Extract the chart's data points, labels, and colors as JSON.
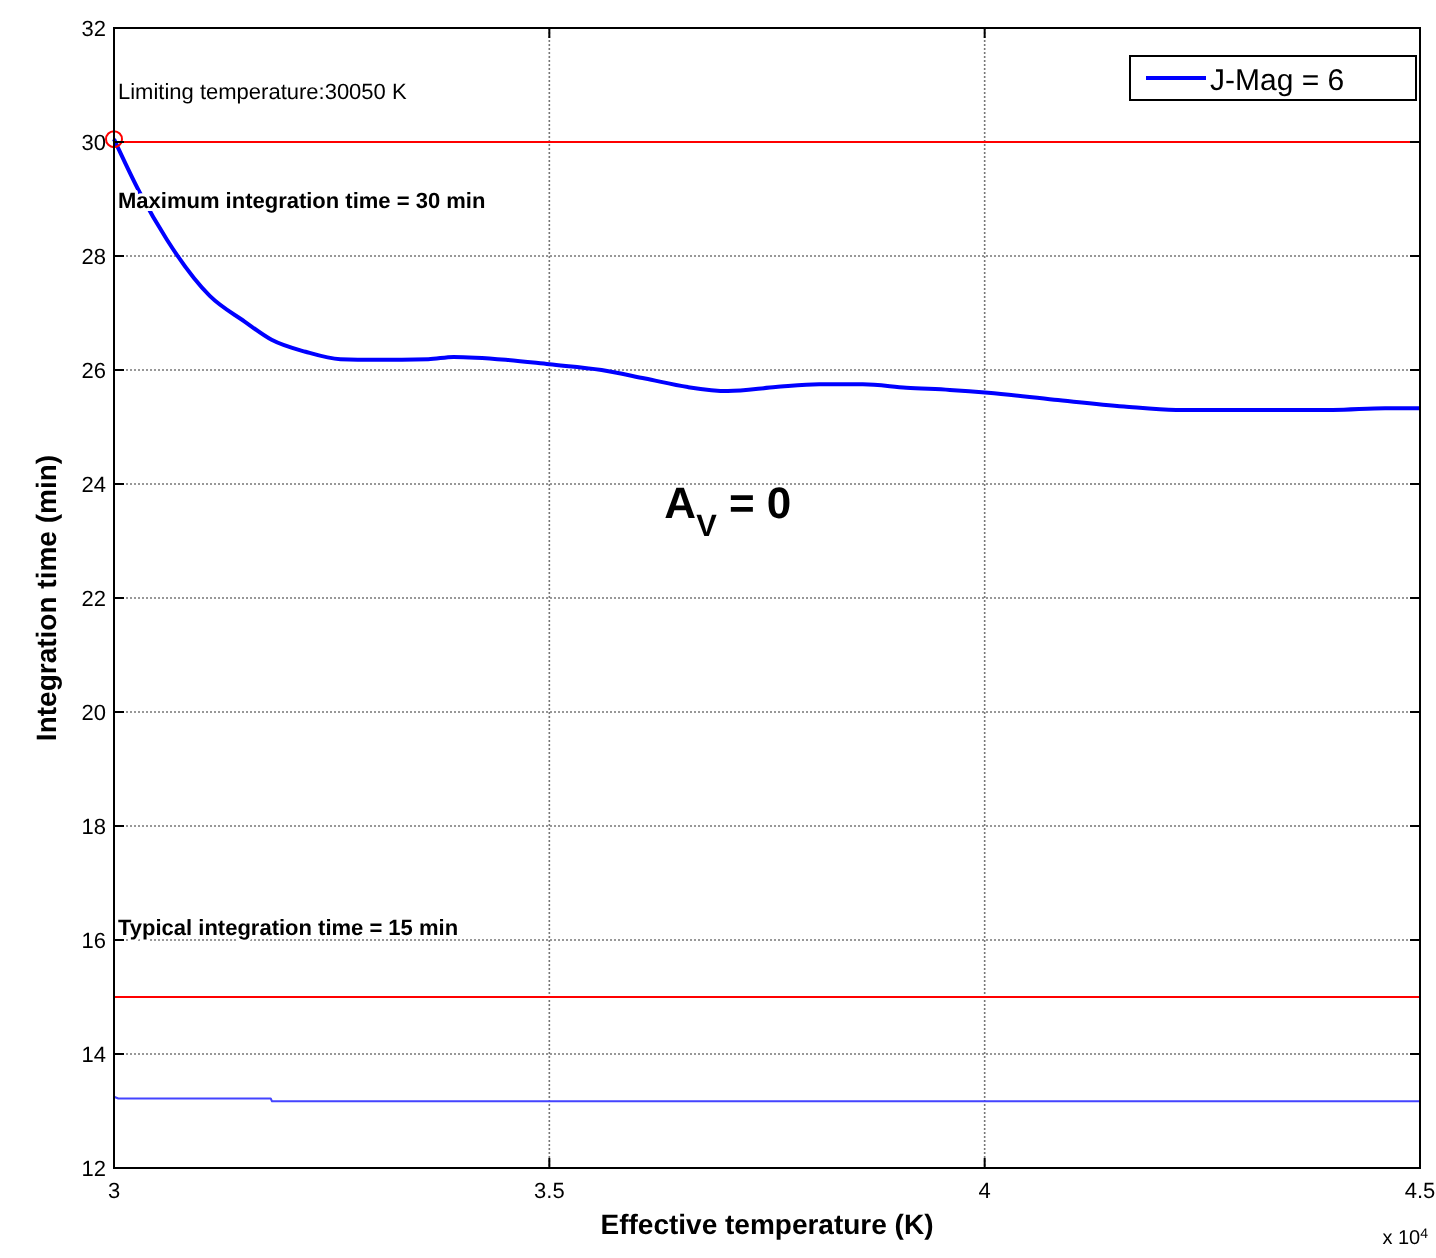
{
  "chart_data": {
    "type": "line",
    "xlabel": "Effective temperature (K)",
    "ylabel": "Integration time (min)",
    "xlim": [
      3,
      4.5
    ],
    "ylim": [
      12,
      32
    ],
    "xticks": [
      3,
      3.5,
      4,
      4.5
    ],
    "yticks": [
      12,
      14,
      16,
      18,
      20,
      22,
      24,
      26,
      28,
      30,
      32
    ],
    "grid": true,
    "legend": "top right",
    "series": [
      {
        "name": "J-Mag = 6",
        "color": "#0000ff",
        "x": [
          3,
          3.03,
          3.061,
          3.11,
          3.15,
          3.181,
          3.22,
          3.26,
          3.3,
          3.361,
          3.39,
          3.45,
          3.5,
          3.56,
          3.61,
          3.659,
          3.705,
          3.76,
          3.81,
          3.86,
          3.91,
          3.96,
          4.004,
          4.08,
          4.16,
          4.22,
          4.3,
          4.4,
          4.46,
          4.5
        ],
        "values": [
          30.05,
          29.1,
          28.28,
          27.3,
          26.85,
          26.53,
          26.32,
          26.19,
          26.18,
          26.19,
          26.23,
          26.18,
          26.1,
          26.0,
          25.85,
          25.7,
          25.63,
          25.7,
          25.75,
          25.75,
          25.69,
          25.65,
          25.6,
          25.48,
          25.36,
          25.3,
          25.3,
          25.3,
          25.33,
          25.33
        ]
      },
      {
        "color": "#4444ff",
        "x": [
          3,
          3.005,
          3.18,
          3.1815,
          4.5
        ],
        "values": [
          13.25,
          13.22,
          13.22,
          13.17,
          13.17
        ]
      },
      {
        "type": "scatter",
        "marker": "circle",
        "color": "#ff0000",
        "x": [
          3
        ],
        "values": [
          30.05
        ]
      }
    ],
    "ref_lines": [
      {
        "axis": "y",
        "value": 30,
        "label": "Maximum integration time = 30 min",
        "color": "#ff0000"
      },
      {
        "axis": "y",
        "value": 15,
        "label": "Typical integration time = 15 min",
        "color": "#ff0000"
      }
    ],
    "annotations": [
      {
        "text": "Limiting temperature:30050 K",
        "x": 3,
        "y": 30.05
      },
      "A$_{V}$ = 0",
      "x 10$^{4}$"
    ]
  }
}
